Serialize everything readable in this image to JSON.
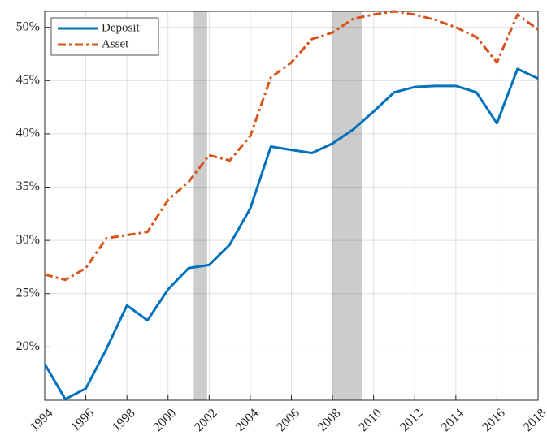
{
  "chart_data": {
    "type": "line",
    "x": [
      1994,
      1995,
      1996,
      1997,
      1998,
      1999,
      2000,
      2001,
      2002,
      2003,
      2004,
      2005,
      2006,
      2007,
      2008,
      2009,
      2010,
      2011,
      2012,
      2013,
      2014,
      2015,
      2016,
      2017,
      2018
    ],
    "series": [
      {
        "name": "Deposit",
        "color": "#0072bd",
        "dash": "solid",
        "values": [
          18.4,
          15.1,
          16.1,
          19.8,
          23.9,
          22.5,
          25.4,
          27.4,
          27.7,
          29.6,
          33.0,
          38.8,
          38.5,
          38.2,
          39.1,
          40.4,
          42.1,
          43.9,
          44.4,
          44.5,
          44.5,
          43.9,
          41.0,
          46.1,
          45.2
        ]
      },
      {
        "name": "Asset",
        "color": "#d95319",
        "dash": "dashdot",
        "values": [
          26.8,
          26.3,
          27.4,
          30.2,
          30.5,
          30.8,
          33.8,
          35.5,
          38.0,
          37.5,
          39.8,
          45.3,
          46.7,
          48.9,
          49.5,
          50.8,
          51.2,
          51.5,
          51.2,
          50.7,
          50.0,
          49.1,
          46.7,
          51.2,
          49.8
        ]
      }
    ],
    "shaded_ranges": [
      [
        2001.25,
        2001.9
      ],
      [
        2008.0,
        2009.45
      ]
    ],
    "xlim": [
      1994,
      2018
    ],
    "xticks": [
      1994,
      1996,
      1998,
      2000,
      2002,
      2004,
      2006,
      2008,
      2010,
      2012,
      2014,
      2016,
      2018
    ],
    "ylim": [
      15,
      51.5
    ],
    "yticks": [
      {
        "value": 20,
        "label": "20%"
      },
      {
        "value": 25,
        "label": "25%"
      },
      {
        "value": 30,
        "label": "30%"
      },
      {
        "value": 35,
        "label": "35%"
      },
      {
        "value": 40,
        "label": "40%"
      },
      {
        "value": 45,
        "label": "45%"
      },
      {
        "value": 50,
        "label": "50%"
      }
    ],
    "grid": true,
    "legend": "upper-left"
  }
}
